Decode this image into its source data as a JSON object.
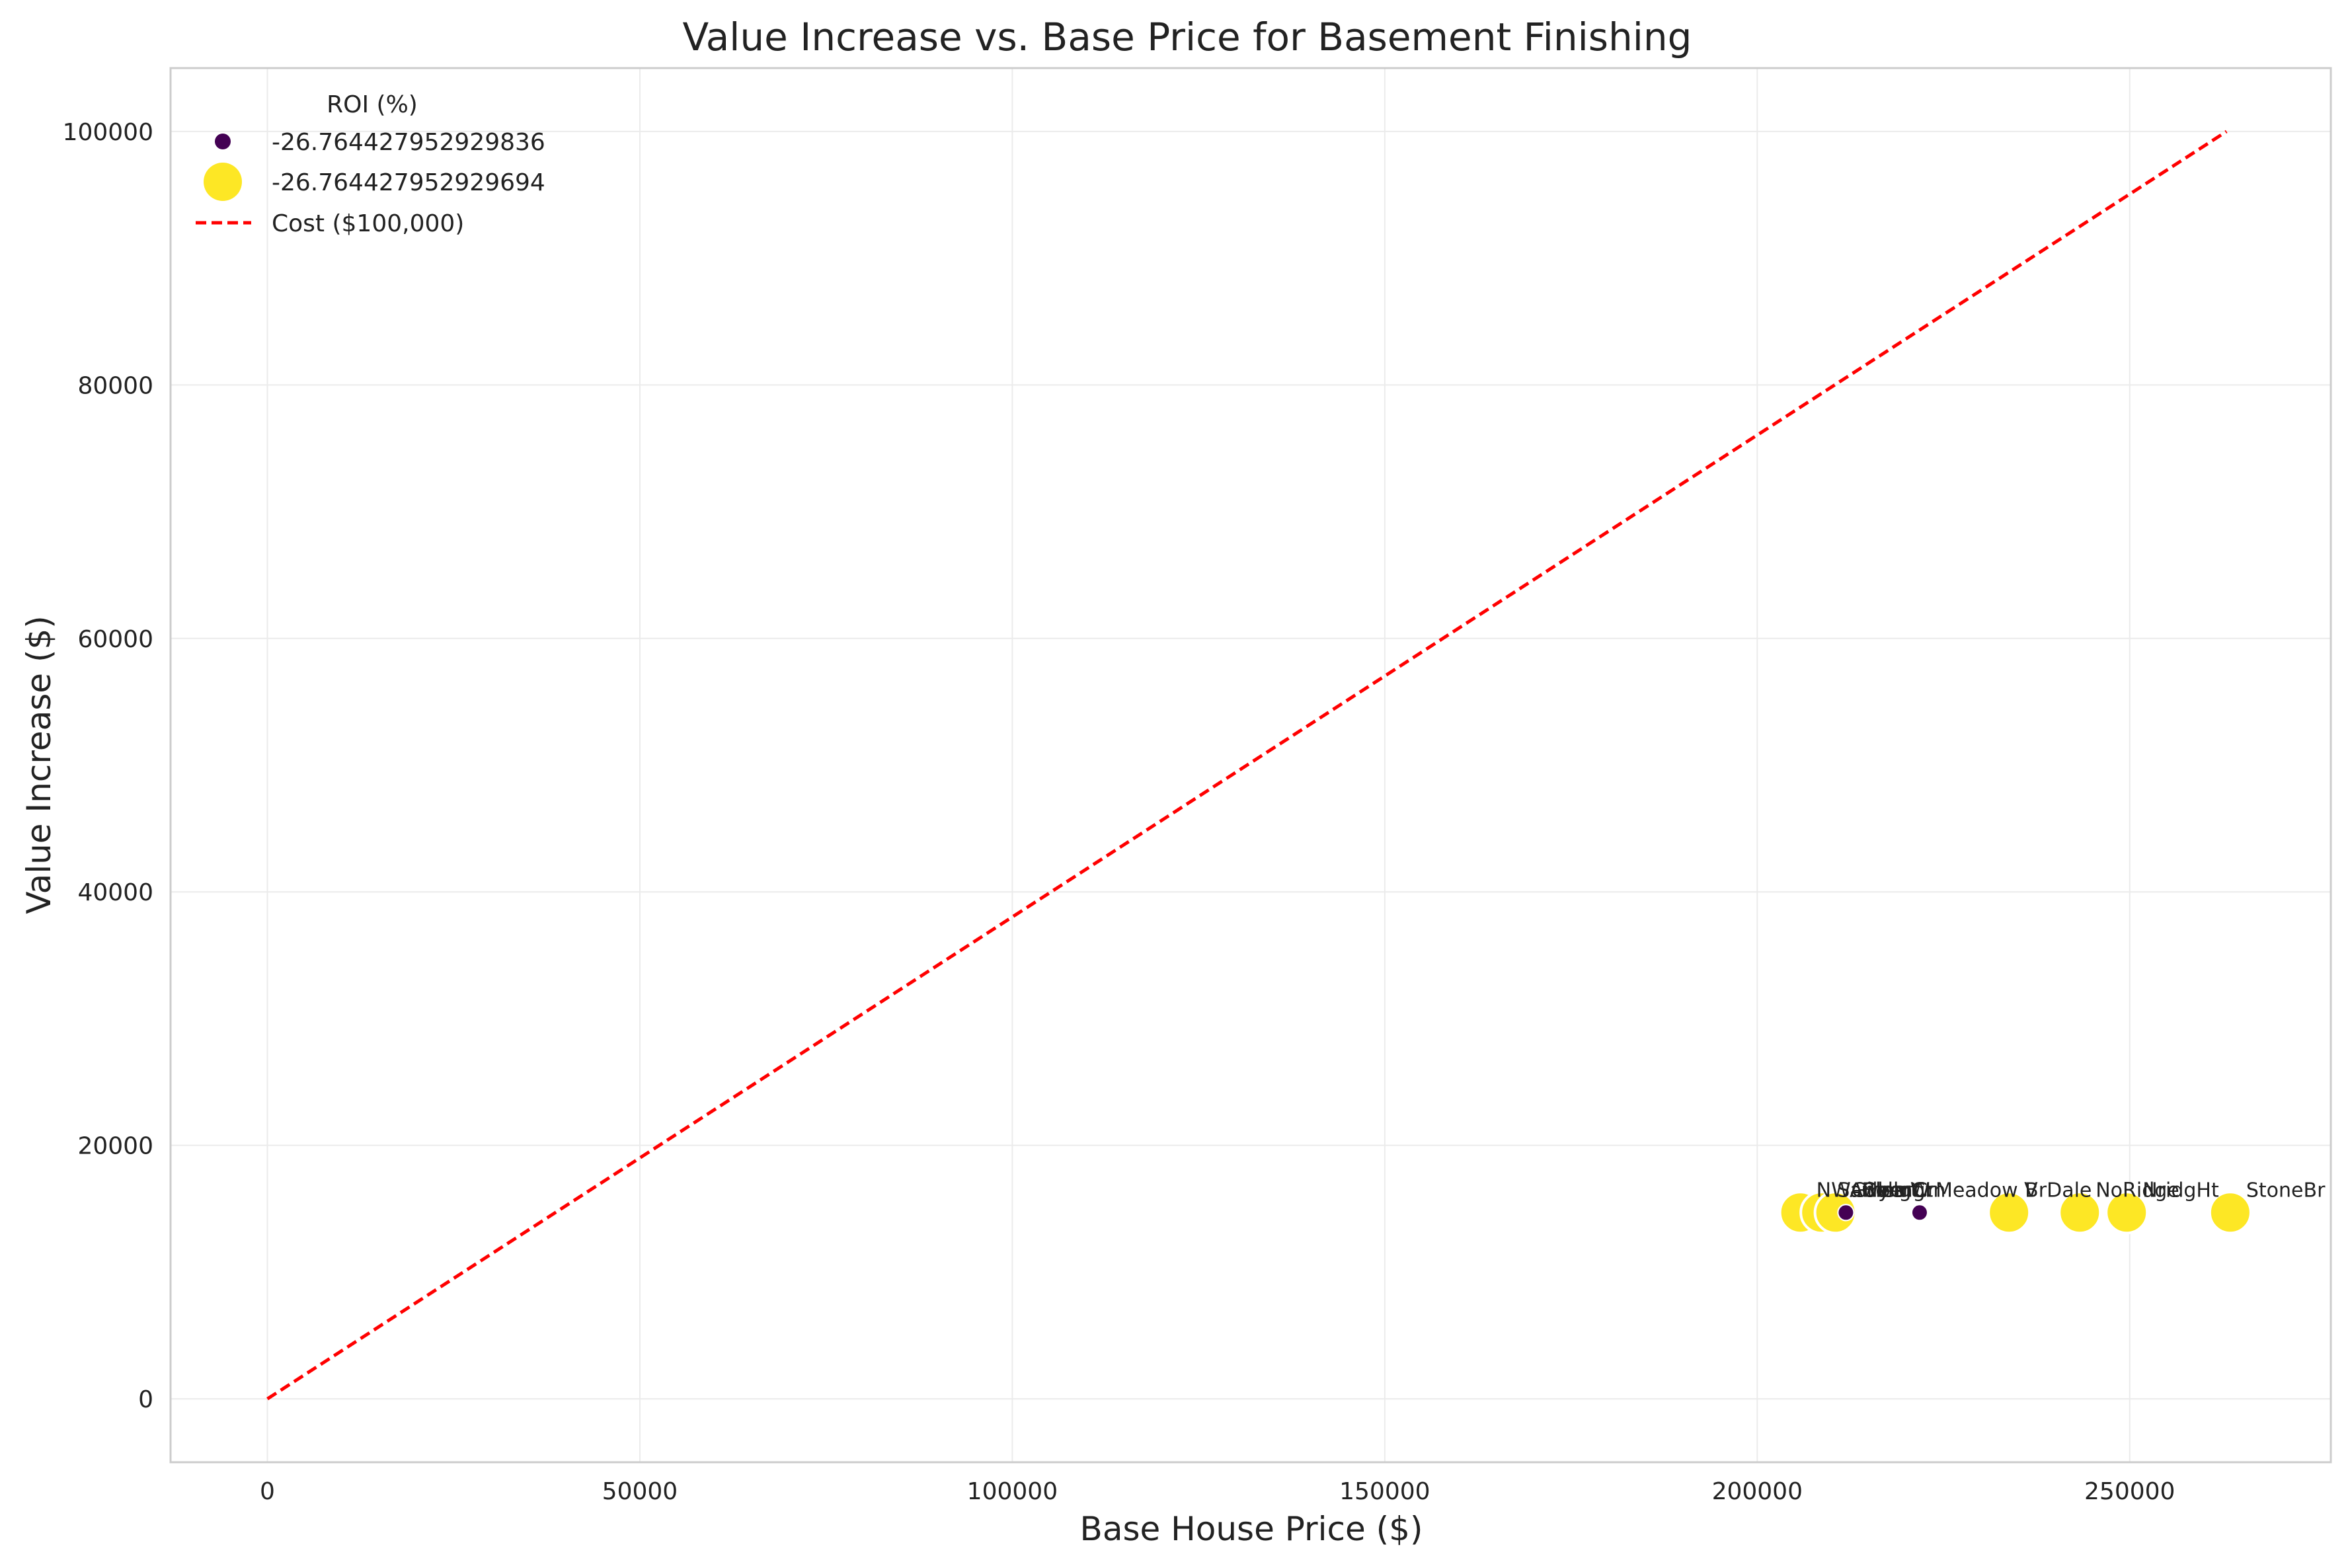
{
  "chart_data": {
    "type": "scatter",
    "title": "Value Increase vs. Base Price for Basement Finishing",
    "xlabel": "Base House Price ($)",
    "ylabel": "Value Increase ($)",
    "xlim": [
      -13000,
      277000
    ],
    "ylim": [
      -5000,
      105000
    ],
    "xticks": [
      0,
      50000,
      100000,
      150000,
      200000,
      250000
    ],
    "yticks": [
      0,
      20000,
      40000,
      60000,
      80000,
      100000
    ],
    "grid": true,
    "legend": {
      "title": "ROI (%)",
      "placement": "top-left",
      "entries": [
        {
          "label": "-26.764427952929836",
          "marker": "small-circle",
          "color": "#440154"
        },
        {
          "label": "-26.764427952929694",
          "marker": "large-circle",
          "color": "#fde725"
        },
        {
          "label": "Cost ($100,000)",
          "marker": "dashed-line",
          "color": "#ff0000"
        }
      ]
    },
    "cost_line": {
      "x": [
        0,
        263000
      ],
      "y": [
        0,
        100000
      ],
      "color": "#ff0000"
    },
    "points": [
      {
        "label": "NWAmes",
        "x": 205800,
        "y": 14700,
        "group": "large"
      },
      {
        "label": "SawyerW",
        "x": 208600,
        "y": 14700,
        "group": "large"
      },
      {
        "label": "Gilbert",
        "x": 210500,
        "y": 14700,
        "group": "large"
      },
      {
        "label": "Blmngtn",
        "x": 211900,
        "y": 14700,
        "group": "small"
      },
      {
        "label": "CollgCr",
        "x": 211900,
        "y": 14700,
        "group": "small"
      },
      {
        "label": "ClearCr",
        "x": 211900,
        "y": 14700,
        "group": "small"
      },
      {
        "label": "Meadow V",
        "x": 221800,
        "y": 14700,
        "group": "small"
      },
      {
        "label": "BrDale",
        "x": 233800,
        "y": 14700,
        "group": "large"
      },
      {
        "label": "NoRidge",
        "x": 243300,
        "y": 14700,
        "group": "large"
      },
      {
        "label": "NridgHt",
        "x": 249600,
        "y": 14700,
        "group": "large"
      },
      {
        "label": "StoneBr",
        "x": 263500,
        "y": 14700,
        "group": "large"
      }
    ]
  }
}
